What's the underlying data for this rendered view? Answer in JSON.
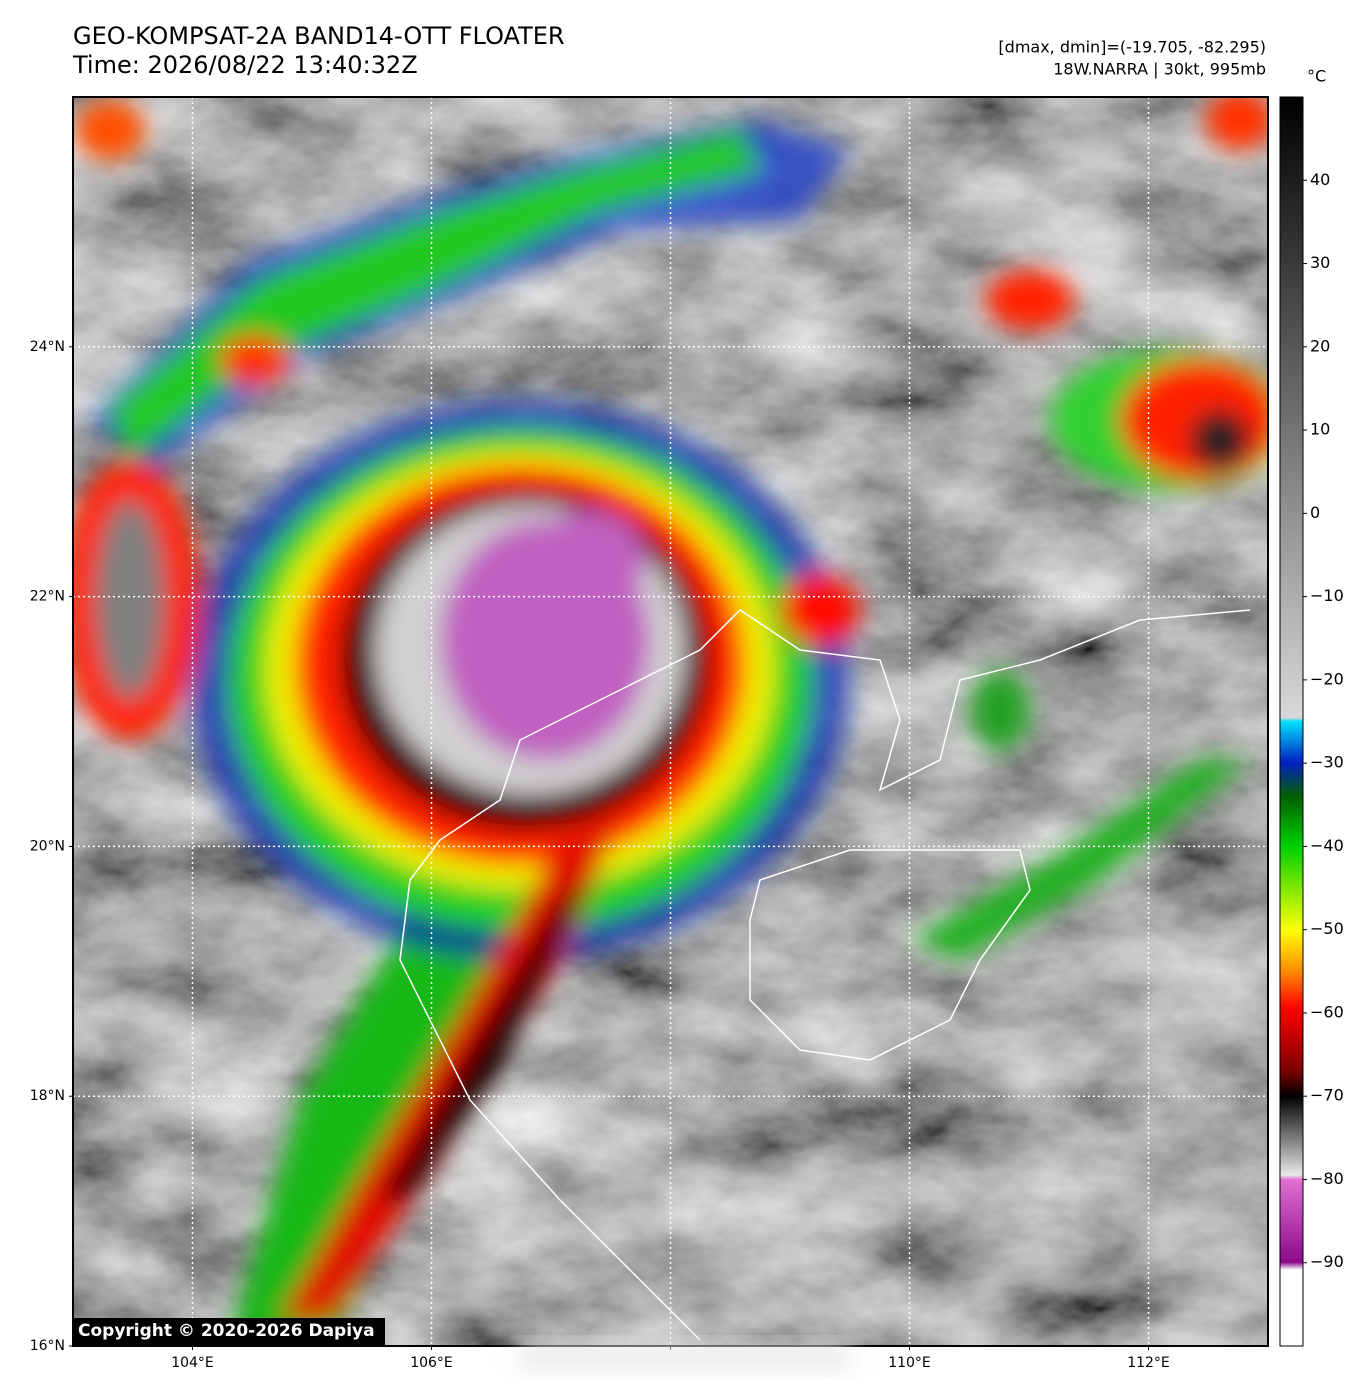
{
  "header": {
    "title": "GEO-KOMPSAT-2A BAND14-OTT FLOATER",
    "time": "Time: 2026/08/22 13:40:32Z",
    "stats": "[dmax, dmin]=(-19.705, -82.295)",
    "storm": "18W.NARRA | 30kt, 995mb"
  },
  "map": {
    "lon_range": [
      103,
      113
    ],
    "lat_range": [
      16,
      26
    ],
    "lon_ticks": [
      {
        "value": 104,
        "label": "104°E"
      },
      {
        "value": 106,
        "label": "106°E"
      },
      {
        "value": 108,
        "label": null
      },
      {
        "value": 110,
        "label": "110°E"
      },
      {
        "value": 112,
        "label": "112°E"
      }
    ],
    "lat_ticks": [
      {
        "value": 16,
        "label": "16°N"
      },
      {
        "value": 18,
        "label": "18°N"
      },
      {
        "value": 20,
        "label": "20°N"
      },
      {
        "value": 22,
        "label": "22°N"
      },
      {
        "value": 24,
        "label": "24°N"
      }
    ],
    "grid": true
  },
  "colorbar": {
    "unit": "°C",
    "lim": [
      -100,
      50
    ],
    "ticks": [
      {
        "value": -90,
        "label": "−90"
      },
      {
        "value": -80,
        "label": "−80"
      },
      {
        "value": -70,
        "label": "−70"
      },
      {
        "value": -60,
        "label": "−60"
      },
      {
        "value": -50,
        "label": "−50"
      },
      {
        "value": -40,
        "label": "−40"
      },
      {
        "value": -30,
        "label": "−30"
      },
      {
        "value": -20,
        "label": "−20"
      },
      {
        "value": -10,
        "label": "−10"
      },
      0,
      10,
      20,
      30,
      40
    ]
  },
  "copyright": "Copyright © 2020-2026 Dapiya"
}
